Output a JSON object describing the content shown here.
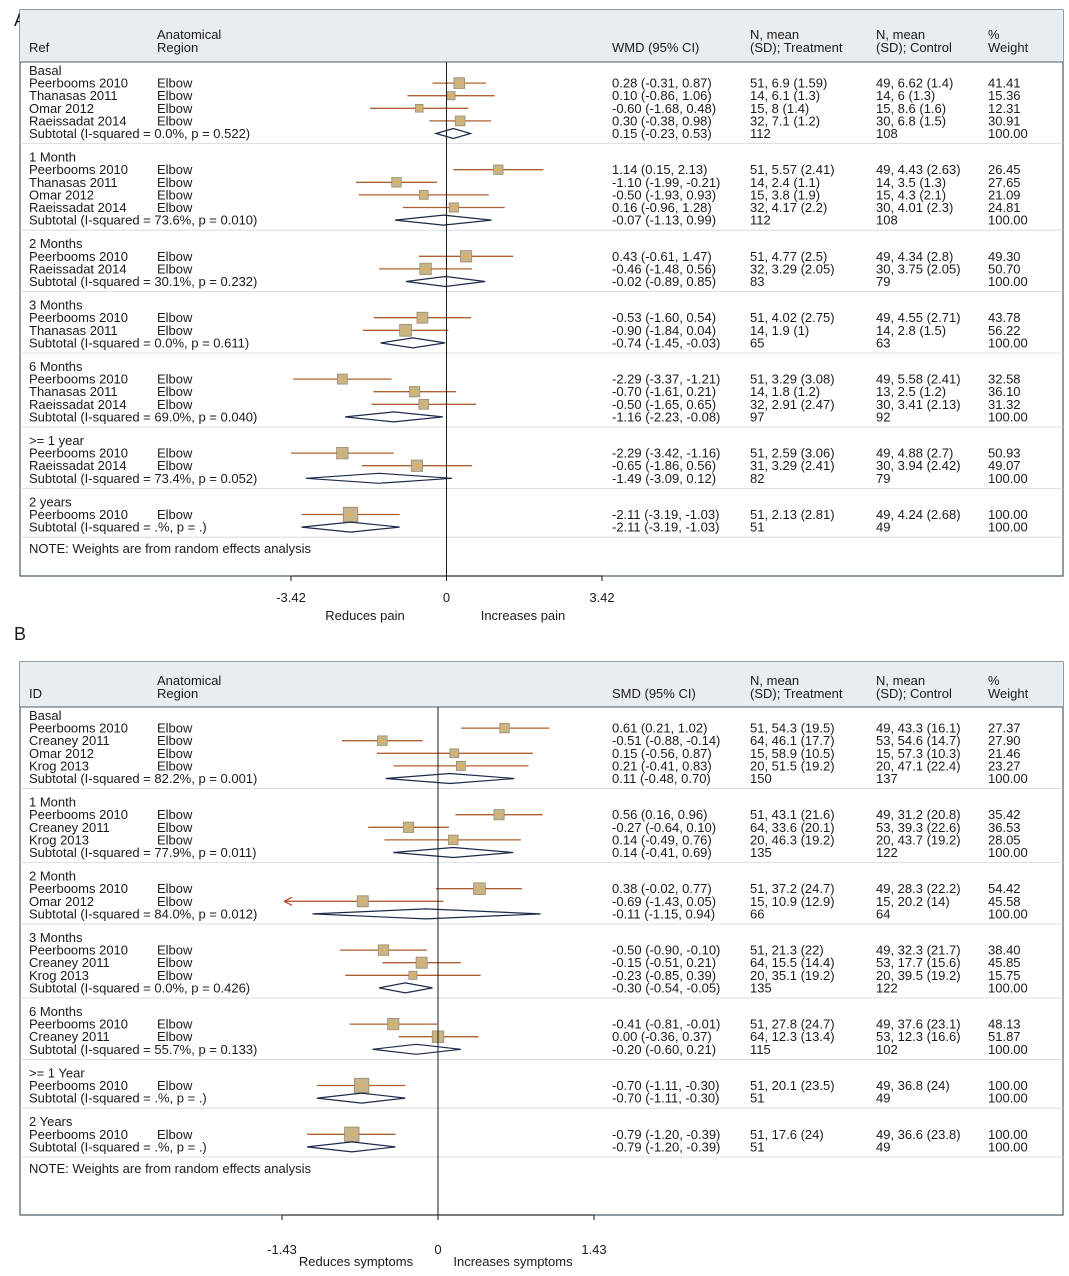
{
  "colors": {
    "panel_bg": "#e8edf1",
    "plot_bg": "#ffffff",
    "border": "#4a5a68",
    "ci_line": "#b06030",
    "box_fill": "#c8b48a",
    "box_stroke": "#9a8a6a",
    "center_dot": "#e8b040",
    "diamond": "#1c2a4a",
    "arrow": "#b04a30"
  },
  "chart_data": [
    {
      "type": "forest",
      "panel_letter": "A",
      "headers": {
        "ref": "Ref",
        "region_line1": "Anatomical",
        "region_line2": "Region",
        "effect": "WMD (95% CI)",
        "treat_line1": "N, mean",
        "treat_line2": "(SD); Treatment",
        "ctrl_line1": "N, mean",
        "ctrl_line2": "(SD); Control",
        "weight_line1": "%",
        "weight_line2": "Weight"
      },
      "xlim": [
        -6.3,
        4.75
      ],
      "null_value": 0,
      "ticks": [
        {
          "value": -3.42,
          "label": "-3.42"
        },
        {
          "value": 0,
          "label": "0"
        },
        {
          "value": 3.42,
          "label": "3.42"
        }
      ],
      "direction_left": "Reduces pain",
      "direction_right": "Increases pain",
      "note": "NOTE: Weights are from random effects analysis",
      "groups": [
        {
          "label": "Basal",
          "studies": [
            {
              "study": "Peerbooms 2010",
              "region": "Elbow",
              "est": 0.28,
              "lo": -0.31,
              "hi": 0.87,
              "ci": "0.28 (-0.31, 0.87)",
              "treat": "51, 6.9 (1.59)",
              "ctrl": "49, 6.62 (1.4)",
              "weight": "41.41",
              "w": 41.41
            },
            {
              "study": "Thanasas 2011",
              "region": "Elbow",
              "est": 0.1,
              "lo": -0.86,
              "hi": 1.06,
              "ci": "0.10 (-0.86, 1.06)",
              "treat": "14, 6.1 (1.3)",
              "ctrl": "14, 6 (1.3)",
              "weight": "15.36",
              "w": 15.36
            },
            {
              "study": "Omar 2012",
              "region": "Elbow",
              "est": -0.6,
              "lo": -1.68,
              "hi": 0.48,
              "ci": "-0.60 (-1.68, 0.48)",
              "treat": "15, 8 (1.4)",
              "ctrl": "15, 8.6 (1.6)",
              "weight": "12.31",
              "w": 12.31
            },
            {
              "study": "Raeissadat 2014",
              "region": "Elbow",
              "est": 0.3,
              "lo": -0.38,
              "hi": 0.98,
              "ci": "0.30 (-0.38, 0.98)",
              "treat": "32, 7.1 (1.2)",
              "ctrl": "30, 6.8 (1.5)",
              "weight": "30.91",
              "w": 30.91
            }
          ],
          "subtotal": {
            "label": "Subtotal  (I-squared = 0.0%, p = 0.522)",
            "est": 0.15,
            "lo": -0.23,
            "hi": 0.53,
            "ci": "0.15 (-0.23, 0.53)",
            "treat": "112",
            "ctrl": "108",
            "weight": "100.00"
          }
        },
        {
          "label": "1 Month",
          "studies": [
            {
              "study": "Peerbooms 2010",
              "region": "Elbow",
              "est": 1.14,
              "lo": 0.15,
              "hi": 2.13,
              "ci": "1.14 (0.15, 2.13)",
              "treat": "51, 5.57 (2.41)",
              "ctrl": "49, 4.43 (2.63)",
              "weight": "26.45",
              "w": 26.45
            },
            {
              "study": "Thanasas 2011",
              "region": "Elbow",
              "est": -1.1,
              "lo": -1.99,
              "hi": -0.21,
              "ci": "-1.10 (-1.99, -0.21)",
              "treat": "14, 2.4 (1.1)",
              "ctrl": "14, 3.5 (1.3)",
              "weight": "27.65",
              "w": 27.65
            },
            {
              "study": "Omar 2012",
              "region": "Elbow",
              "est": -0.5,
              "lo": -1.93,
              "hi": 0.93,
              "ci": "-0.50 (-1.93, 0.93)",
              "treat": "15, 3.8 (1.9)",
              "ctrl": "15, 4.3 (2.1)",
              "weight": "21.09",
              "w": 21.09
            },
            {
              "study": "Raeissadat 2014",
              "region": "Elbow",
              "est": 0.16,
              "lo": -0.96,
              "hi": 1.28,
              "ci": "0.16 (-0.96, 1.28)",
              "treat": "32, 4.17 (2.2)",
              "ctrl": "30, 4.01 (2.3)",
              "weight": "24.81",
              "w": 24.81
            }
          ],
          "subtotal": {
            "label": "Subtotal  (I-squared = 73.6%, p = 0.010)",
            "est": -0.07,
            "lo": -1.13,
            "hi": 0.99,
            "ci": "-0.07 (-1.13, 0.99)",
            "treat": "112",
            "ctrl": "108",
            "weight": "100.00"
          }
        },
        {
          "label": "2 Months",
          "studies": [
            {
              "study": "Peerbooms 2010",
              "region": "Elbow",
              "est": 0.43,
              "lo": -0.61,
              "hi": 1.47,
              "ci": "0.43 (-0.61, 1.47)",
              "treat": "51, 4.77 (2.5)",
              "ctrl": "49, 4.34 (2.8)",
              "weight": "49.30",
              "w": 49.3
            },
            {
              "study": "Raeissadat 2014",
              "region": "Elbow",
              "est": -0.46,
              "lo": -1.48,
              "hi": 0.56,
              "ci": "-0.46 (-1.48, 0.56)",
              "treat": "32, 3.29 (2.05)",
              "ctrl": "30, 3.75 (2.05)",
              "weight": "50.70",
              "w": 50.7
            }
          ],
          "subtotal": {
            "label": "Subtotal  (I-squared = 30.1%, p = 0.232)",
            "est": -0.02,
            "lo": -0.89,
            "hi": 0.85,
            "ci": "-0.02 (-0.89, 0.85)",
            "treat": "83",
            "ctrl": "79",
            "weight": "100.00"
          }
        },
        {
          "label": "3 Months",
          "studies": [
            {
              "study": "Peerbooms 2010",
              "region": "Elbow",
              "est": -0.53,
              "lo": -1.6,
              "hi": 0.54,
              "ci": "-0.53 (-1.60, 0.54)",
              "treat": "51, 4.02 (2.75)",
              "ctrl": "49, 4.55 (2.71)",
              "weight": "43.78",
              "w": 43.78
            },
            {
              "study": "Thanasas 2011",
              "region": "Elbow",
              "est": -0.9,
              "lo": -1.84,
              "hi": 0.04,
              "ci": "-0.90 (-1.84, 0.04)",
              "treat": "14, 1.9 (1)",
              "ctrl": "14, 2.8 (1.5)",
              "weight": "56.22",
              "w": 56.22
            }
          ],
          "subtotal": {
            "label": "Subtotal  (I-squared = 0.0%, p = 0.611)",
            "est": -0.74,
            "lo": -1.45,
            "hi": -0.03,
            "ci": "-0.74 (-1.45, -0.03)",
            "treat": "65",
            "ctrl": "63",
            "weight": "100.00"
          }
        },
        {
          "label": "6 Months",
          "studies": [
            {
              "study": "Peerbooms 2010",
              "region": "Elbow",
              "est": -2.29,
              "lo": -3.37,
              "hi": -1.21,
              "ci": "-2.29 (-3.37, -1.21)",
              "treat": "51, 3.29 (3.08)",
              "ctrl": "49, 5.58 (2.41)",
              "weight": "32.58",
              "w": 32.58
            },
            {
              "study": "Thanasas 2011",
              "region": "Elbow",
              "est": -0.7,
              "lo": -1.61,
              "hi": 0.21,
              "ci": "-0.70 (-1.61, 0.21)",
              "treat": "14, 1.8 (1.2)",
              "ctrl": "13, 2.5 (1.2)",
              "weight": "36.10",
              "w": 36.1
            },
            {
              "study": "Raeissadat 2014",
              "region": "Elbow",
              "est": -0.5,
              "lo": -1.65,
              "hi": 0.65,
              "ci": "-0.50 (-1.65, 0.65)",
              "treat": "32, 2.91 (2.47)",
              "ctrl": "30, 3.41 (2.13)",
              "weight": "31.32",
              "w": 31.32
            }
          ],
          "subtotal": {
            "label": "Subtotal  (I-squared = 69.0%, p = 0.040)",
            "est": -1.16,
            "lo": -2.23,
            "hi": -0.08,
            "ci": "-1.16 (-2.23, -0.08)",
            "treat": "97",
            "ctrl": "92",
            "weight": "100.00"
          }
        },
        {
          "label": ">= 1 year",
          "studies": [
            {
              "study": "Peerbooms 2010",
              "region": "Elbow",
              "est": -2.29,
              "lo": -3.42,
              "hi": -1.16,
              "ci": "-2.29 (-3.42, -1.16)",
              "treat": "51, 2.59 (3.06)",
              "ctrl": "49, 4.88 (2.7)",
              "weight": "50.93",
              "w": 50.93
            },
            {
              "study": "Raeissadat 2014",
              "region": "Elbow",
              "est": -0.65,
              "lo": -1.86,
              "hi": 0.56,
              "ci": "-0.65 (-1.86, 0.56)",
              "treat": "31, 3.29 (2.41)",
              "ctrl": "30, 3.94 (2.42)",
              "weight": "49.07",
              "w": 49.07
            }
          ],
          "subtotal": {
            "label": "Subtotal  (I-squared = 73.4%, p = 0.052)",
            "est": -1.49,
            "lo": -3.09,
            "hi": 0.12,
            "ci": "-1.49 (-3.09, 0.12)",
            "treat": "82",
            "ctrl": "79",
            "weight": "100.00"
          }
        },
        {
          "label": "2 years",
          "studies": [
            {
              "study": "Peerbooms 2010",
              "region": "Elbow",
              "est": -2.11,
              "lo": -3.19,
              "hi": -1.03,
              "ci": "-2.11 (-3.19, -1.03)",
              "treat": "51, 2.13 (2.81)",
              "ctrl": "49, 4.24 (2.68)",
              "weight": "100.00",
              "w": 100.0
            }
          ],
          "subtotal": {
            "label": "Subtotal  (I-squared = .%, p = .)",
            "est": -2.11,
            "lo": -3.19,
            "hi": -1.03,
            "ci": "-2.11 (-3.19, -1.03)",
            "treat": "51",
            "ctrl": "49",
            "weight": "100.00"
          }
        }
      ]
    },
    {
      "type": "forest",
      "panel_letter": "B",
      "headers": {
        "ref": "ID",
        "region_line1": "Anatomical",
        "region_line2": "Region",
        "effect": "SMD (95% CI)",
        "treat_line1": "N, mean",
        "treat_line2": "(SD); Treatment",
        "ctrl_line1": "N, mean",
        "ctrl_line2": "(SD); Control",
        "weight_line1": "%",
        "weight_line2": "Weight"
      },
      "xlim": [
        -1.43,
        1.43
      ],
      "null_value": 0,
      "ticks": [
        {
          "value": -1.43,
          "label": "-1.43"
        },
        {
          "value": 0,
          "label": "0"
        },
        {
          "value": 1.43,
          "label": "1.43"
        }
      ],
      "direction_left": "Reduces symptoms",
      "direction_right": "Increases symptoms",
      "note": "NOTE: Weights are from random effects analysis",
      "groups": [
        {
          "label": "Basal",
          "studies": [
            {
              "study": "Peerbooms 2010",
              "region": "Elbow",
              "est": 0.61,
              "lo": 0.21,
              "hi": 1.02,
              "ci": "0.61 (0.21, 1.02)",
              "treat": "51, 54.3 (19.5)",
              "ctrl": "49, 43.3 (16.1)",
              "weight": "27.37",
              "w": 27.37
            },
            {
              "study": "Creaney 2011",
              "region": "Elbow",
              "est": -0.51,
              "lo": -0.88,
              "hi": -0.14,
              "ci": "-0.51 (-0.88, -0.14)",
              "treat": "64, 46.1 (17.7)",
              "ctrl": "53, 54.6 (14.7)",
              "weight": "27.90",
              "w": 27.9
            },
            {
              "study": "Omar 2012",
              "region": "Elbow",
              "est": 0.15,
              "lo": -0.56,
              "hi": 0.87,
              "ci": "0.15 (-0.56, 0.87)",
              "treat": "15, 58.9 (10.5)",
              "ctrl": "15, 57.3 (10.3)",
              "weight": "21.46",
              "w": 21.46
            },
            {
              "study": "Krog 2013",
              "region": "Elbow",
              "est": 0.21,
              "lo": -0.41,
              "hi": 0.83,
              "ci": "0.21 (-0.41, 0.83)",
              "treat": "20, 51.5 (19.2)",
              "ctrl": "20, 47.1 (22.4)",
              "weight": "23.27",
              "w": 23.27
            }
          ],
          "subtotal": {
            "label": "Subtotal  (I-squared = 82.2%, p = 0.001)",
            "est": 0.11,
            "lo": -0.48,
            "hi": 0.7,
            "ci": "0.11 (-0.48, 0.70)",
            "treat": "150",
            "ctrl": "137",
            "weight": "100.00"
          }
        },
        {
          "label": "1 Month",
          "studies": [
            {
              "study": "Peerbooms 2010",
              "region": "Elbow",
              "est": 0.56,
              "lo": 0.16,
              "hi": 0.96,
              "ci": "0.56 (0.16, 0.96)",
              "treat": "51, 43.1 (21.6)",
              "ctrl": "49, 31.2 (20.8)",
              "weight": "35.42",
              "w": 35.42
            },
            {
              "study": "Creaney 2011",
              "region": "Elbow",
              "est": -0.27,
              "lo": -0.64,
              "hi": 0.1,
              "ci": "-0.27 (-0.64, 0.10)",
              "treat": "64, 33.6 (20.1)",
              "ctrl": "53, 39.3 (22.6)",
              "weight": "36.53",
              "w": 36.53
            },
            {
              "study": "Krog 2013",
              "region": "Elbow",
              "est": 0.14,
              "lo": -0.49,
              "hi": 0.76,
              "ci": "0.14 (-0.49, 0.76)",
              "treat": "20, 46.3 (19.2)",
              "ctrl": "20, 43.7 (19.2)",
              "weight": "28.05",
              "w": 28.05
            }
          ],
          "subtotal": {
            "label": "Subtotal  (I-squared = 77.9%, p = 0.011)",
            "est": 0.14,
            "lo": -0.41,
            "hi": 0.69,
            "ci": "0.14 (-0.41, 0.69)",
            "treat": "135",
            "ctrl": "122",
            "weight": "100.00"
          }
        },
        {
          "label": "2 Month",
          "studies": [
            {
              "study": "Peerbooms 2010",
              "region": "Elbow",
              "est": 0.38,
              "lo": -0.02,
              "hi": 0.77,
              "ci": "0.38 (-0.02, 0.77)",
              "treat": "51, 37.2 (24.7)",
              "ctrl": "49, 28.3 (22.2)",
              "weight": "54.42",
              "w": 54.42
            },
            {
              "study": "Omar 2012",
              "region": "Elbow",
              "est": -0.69,
              "lo": -1.43,
              "hi": 0.05,
              "ci": "-0.69 (-1.43, 0.05)",
              "treat": "15, 10.9 (12.9)",
              "ctrl": "15, 20.2 (14)",
              "weight": "45.58",
              "w": 45.58,
              "arrow_left": true
            }
          ],
          "subtotal": {
            "label": "Subtotal  (I-squared = 84.0%, p = 0.012)",
            "est": -0.11,
            "lo": -1.15,
            "hi": 0.94,
            "ci": "-0.11 (-1.15, 0.94)",
            "treat": "66",
            "ctrl": "64",
            "weight": "100.00"
          }
        },
        {
          "label": "3 Months",
          "studies": [
            {
              "study": "Peerbooms 2010",
              "region": "Elbow",
              "est": -0.5,
              "lo": -0.9,
              "hi": -0.1,
              "ci": "-0.50 (-0.90, -0.10)",
              "treat": "51, 21.3 (22)",
              "ctrl": "49, 32.3 (21.7)",
              "weight": "38.40",
              "w": 38.4
            },
            {
              "study": "Creaney 2011",
              "region": "Elbow",
              "est": -0.15,
              "lo": -0.51,
              "hi": 0.21,
              "ci": "-0.15 (-0.51, 0.21)",
              "treat": "64, 15.5 (14.4)",
              "ctrl": "53, 17.7 (15.6)",
              "weight": "45.85",
              "w": 45.85
            },
            {
              "study": "Krog 2013",
              "region": "Elbow",
              "est": -0.23,
              "lo": -0.85,
              "hi": 0.39,
              "ci": "-0.23 (-0.85, 0.39)",
              "treat": "20, 35.1 (19.2)",
              "ctrl": "20, 39.5 (19.2)",
              "weight": "15.75",
              "w": 15.75
            }
          ],
          "subtotal": {
            "label": "Subtotal  (I-squared = 0.0%, p = 0.426)",
            "est": -0.3,
            "lo": -0.54,
            "hi": -0.05,
            "ci": "-0.30 (-0.54, -0.05)",
            "treat": "135",
            "ctrl": "122",
            "weight": "100.00"
          }
        },
        {
          "label": "6 Months",
          "studies": [
            {
              "study": "Peerbooms 2010",
              "region": "Elbow",
              "est": -0.41,
              "lo": -0.81,
              "hi": -0.01,
              "ci": "-0.41 (-0.81, -0.01)",
              "treat": "51, 27.8 (24.7)",
              "ctrl": "49, 37.6 (23.1)",
              "weight": "48.13",
              "w": 48.13
            },
            {
              "study": "Creaney 2011",
              "region": "Elbow",
              "est": 0.0,
              "lo": -0.36,
              "hi": 0.37,
              "ci": "0.00 (-0.36, 0.37)",
              "treat": "64, 12.3 (13.4)",
              "ctrl": "53, 12.3 (16.6)",
              "weight": "51.87",
              "w": 51.87
            }
          ],
          "subtotal": {
            "label": "Subtotal  (I-squared = 55.7%, p = 0.133)",
            "est": -0.2,
            "lo": -0.6,
            "hi": 0.21,
            "ci": "-0.20 (-0.60, 0.21)",
            "treat": "115",
            "ctrl": "102",
            "weight": "100.00"
          }
        },
        {
          "label": ">= 1 Year",
          "studies": [
            {
              "study": "Peerbooms 2010",
              "region": "Elbow",
              "est": -0.7,
              "lo": -1.11,
              "hi": -0.3,
              "ci": "-0.70 (-1.11, -0.30)",
              "treat": "51, 20.1 (23.5)",
              "ctrl": "49, 36.8 (24)",
              "weight": "100.00",
              "w": 100.0
            }
          ],
          "subtotal": {
            "label": "Subtotal  (I-squared = .%, p = .)",
            "est": -0.7,
            "lo": -1.11,
            "hi": -0.3,
            "ci": "-0.70 (-1.11, -0.30)",
            "treat": "51",
            "ctrl": "49",
            "weight": "100.00"
          }
        },
        {
          "label": "2 Years",
          "studies": [
            {
              "study": "Peerbooms 2010",
              "region": "Elbow",
              "est": -0.79,
              "lo": -1.2,
              "hi": -0.39,
              "ci": "-0.79 (-1.20, -0.39)",
              "treat": "51, 17.6 (24)",
              "ctrl": "49, 36.6 (23.8)",
              "weight": "100.00",
              "w": 100.0
            }
          ],
          "subtotal": {
            "label": "Subtotal  (I-squared = .%, p = .)",
            "est": -0.79,
            "lo": -1.2,
            "hi": -0.39,
            "ci": "-0.79 (-1.20, -0.39)",
            "treat": "51",
            "ctrl": "49",
            "weight": "100.00"
          }
        }
      ]
    }
  ]
}
